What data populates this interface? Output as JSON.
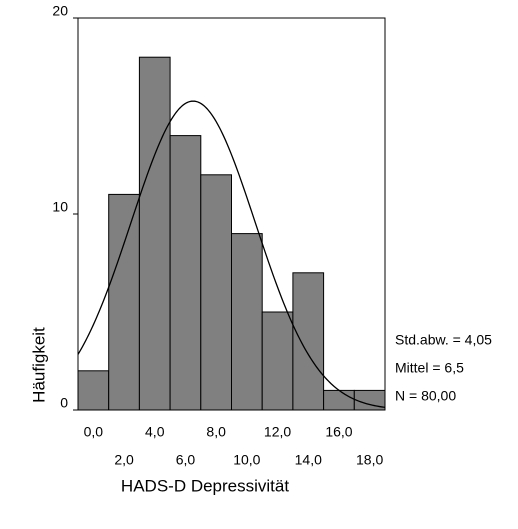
{
  "chart_data": {
    "type": "histogram",
    "bins": [
      -1,
      1,
      3,
      5,
      7,
      9,
      11,
      13,
      15,
      17,
      19
    ],
    "values": [
      2,
      11,
      18,
      14,
      12,
      9,
      5,
      7,
      1,
      1
    ],
    "color": "#808080",
    "xlim": [
      -1,
      19
    ],
    "xticks": [
      {
        "value": 0,
        "label": "0,0"
      },
      {
        "value": 2,
        "label": "2,0"
      },
      {
        "value": 4,
        "label": "4,0"
      },
      {
        "value": 6,
        "label": "6,0"
      },
      {
        "value": 8,
        "label": "8,0"
      },
      {
        "value": 10,
        "label": "10,0"
      },
      {
        "value": 12,
        "label": "12,0"
      },
      {
        "value": 14,
        "label": "14,0"
      },
      {
        "value": 16,
        "label": "16,0"
      },
      {
        "value": 18,
        "label": "18,0"
      }
    ],
    "ylim": [
      0,
      20
    ],
    "yticks": [
      0,
      10,
      20
    ],
    "ylabel": "Häufigkeit",
    "xlabel": "HADS-D Depressivität",
    "normal_curve": {
      "std": {
        "value": 4.05,
        "label": "Std.abw. = 4,05"
      },
      "mean": {
        "value": 6.5,
        "label": "Mittel = 6,5"
      },
      "n": {
        "value": 80,
        "label": "N = 80,00"
      }
    }
  }
}
